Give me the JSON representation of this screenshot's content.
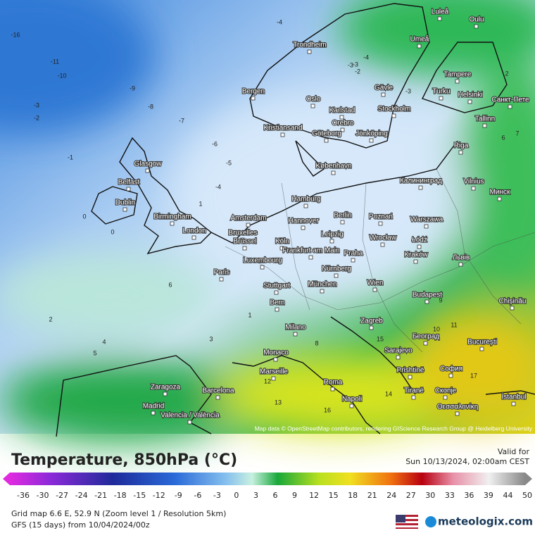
{
  "header": {
    "title": "Temperature, 850hPa (°C)",
    "valid_label": "Valid for",
    "valid_time": "Sun 10/13/2024, 02:00am CEST"
  },
  "map": {
    "attribution": "Map data © OpenStreetMap contributors, rendering GIScience Research Group @ Heidelberg University",
    "cities": [
      "Luleå",
      "Oulu",
      "Umeå",
      "Trondheim",
      "Tampere",
      "Helsinki",
      "Санкт-Пете",
      "Bergen",
      "Gävle",
      "Turku",
      "Oslo",
      "Karlstad",
      "Stockholm",
      "Tallinn",
      "Orebro",
      "Kristiansand",
      "Göteborg",
      "Jönköping",
      "Riga",
      "Glasgow",
      "København",
      "Belfast",
      "Калининград",
      "Vilnius",
      "Минск",
      "Dublin",
      "Hamburg",
      "Birmingham",
      "Amsterdam",
      "Berlin",
      "Poznań",
      "Warszawa",
      "Hannover",
      "London",
      "Bruxelles",
      "Brussel",
      "Köln",
      "Leipzig",
      "Wrocław",
      "Łódź",
      "Frankfurt am Main",
      "Praha",
      "Kraków",
      "Luxembourg",
      "Львів",
      "Nürnberg",
      "Paris",
      "Stuttgart",
      "München",
      "Wien",
      "Budapest",
      "Bern",
      "Chișinău",
      "Zagreb",
      "Milano",
      "Београд",
      "București",
      "Monaco",
      "Sarajevo",
      "Marseille",
      "Prishtinë",
      "София",
      "Zaragoza",
      "Barcelona",
      "Roma",
      "Tiranë",
      "Скопје",
      "Napoli",
      "İstanbul",
      "Madrid",
      "Valencia / València",
      "Θεσσαλονίκη"
    ],
    "isotherm_labels": [
      -16,
      -11,
      -10,
      -9,
      -8,
      -7,
      -6,
      -5,
      -4,
      -4,
      -3,
      -3,
      -2,
      -1,
      0,
      0,
      1,
      1,
      2,
      3,
      4,
      5,
      6,
      8,
      10,
      11,
      12,
      13,
      14,
      15,
      16,
      17,
      -4,
      -3,
      -2,
      -3,
      2,
      6,
      7,
      9
    ]
  },
  "legend": {
    "ticks": [
      -36,
      -30,
      -27,
      -24,
      -21,
      -18,
      -15,
      -12,
      -9,
      -6,
      -3,
      0,
      3,
      6,
      9,
      12,
      15,
      18,
      21,
      24,
      27,
      30,
      33,
      36,
      39,
      44,
      50
    ]
  },
  "footer": {
    "grid_info": "Grid map 6.6 E, 52.9 N (Zoom level 1 / Resolution 5km)",
    "model": "GFS (15 days) from 10/04/2024/00z",
    "brand": "meteologix.com"
  }
}
